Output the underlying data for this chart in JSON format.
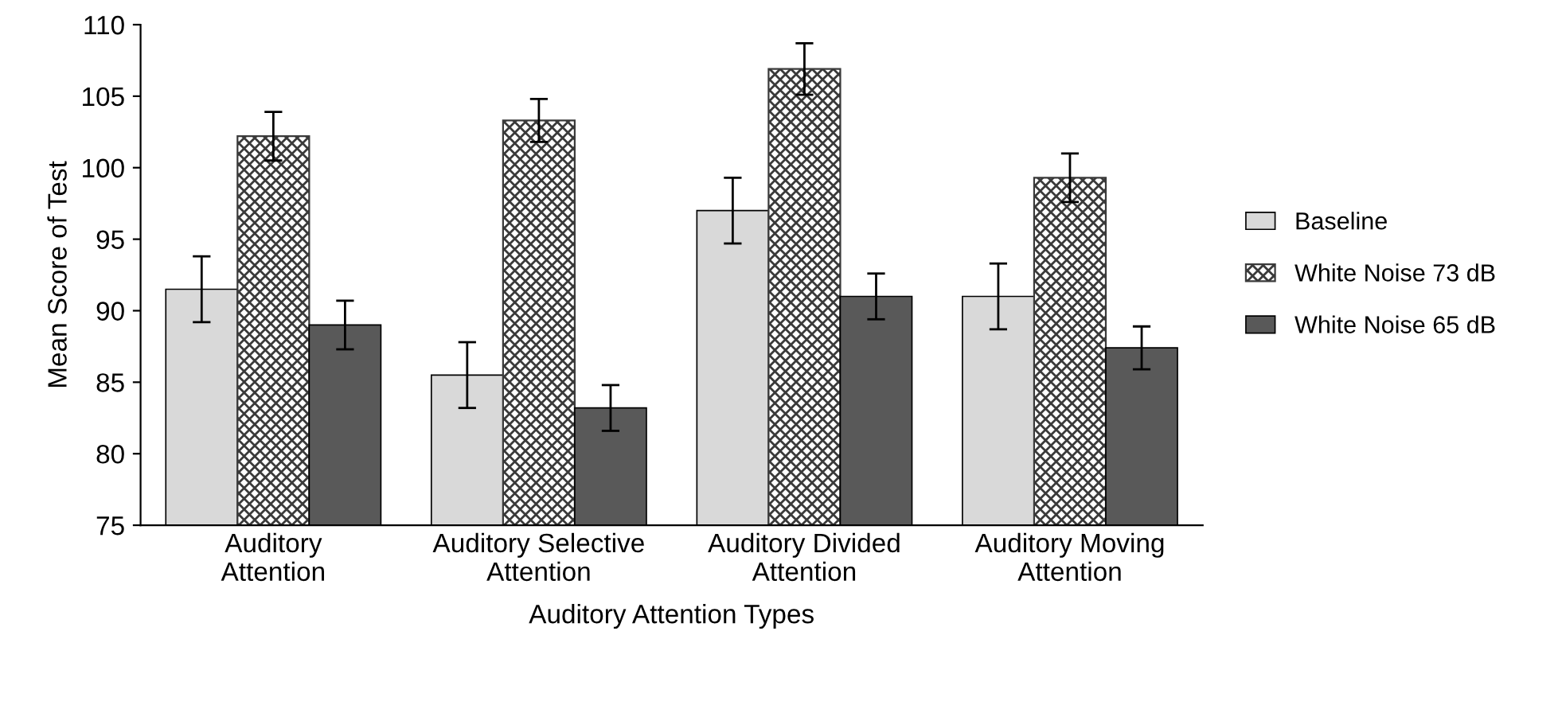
{
  "chart_data": {
    "type": "bar",
    "xlabel": "Auditory Attention Types",
    "ylabel": "Mean Score of Test",
    "categories": [
      "Auditory\nAttention",
      "Auditory Selective\nAttention",
      "Auditory Divided\nAttention",
      "Auditory Moving\nAttention"
    ],
    "series": [
      {
        "name": "Baseline",
        "color": "#d9d9d9",
        "values": [
          91.5,
          85.5,
          97.0,
          91.0
        ],
        "errors": [
          2.3,
          2.3,
          2.3,
          2.3
        ]
      },
      {
        "name": "White Noise 73 dB",
        "color": "#3a3a3a",
        "values": [
          102.2,
          103.3,
          106.9,
          99.3
        ],
        "errors": [
          1.7,
          1.5,
          1.8,
          1.7
        ]
      },
      {
        "name": "White Noise 65 dB",
        "color": "#595959",
        "values": [
          89.0,
          83.2,
          91.0,
          87.4
        ],
        "errors": [
          1.7,
          1.6,
          1.6,
          1.5
        ]
      }
    ],
    "ylim": [
      75,
      110
    ],
    "yticks": [
      75,
      80,
      85,
      90,
      95,
      100,
      105,
      110
    ],
    "grid": false,
    "legend": "right"
  }
}
